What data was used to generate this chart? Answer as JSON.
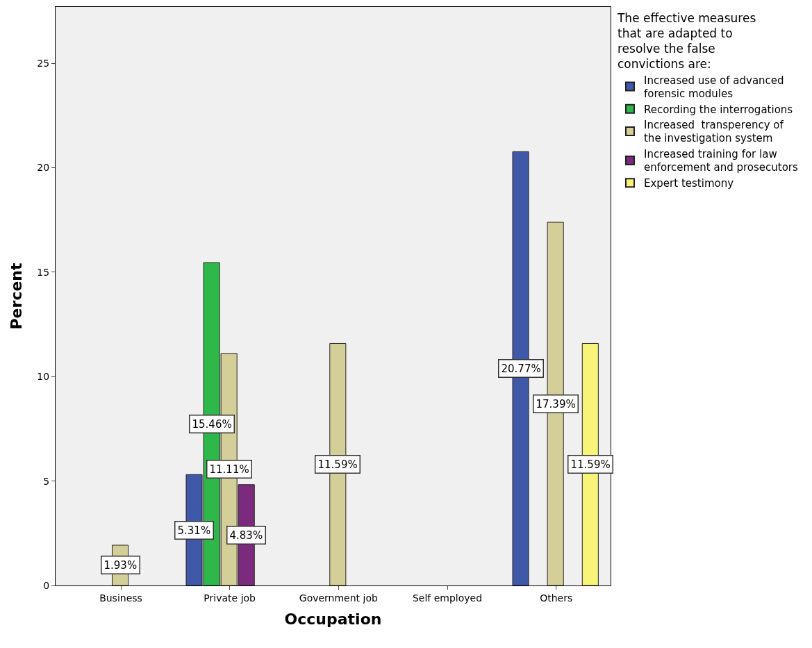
{
  "chart_data": {
    "type": "bar",
    "xlabel": "Occupation",
    "ylabel": "Percent",
    "legend_title": "The effective measures that are adapted to resolve the false convictions are:",
    "categories": [
      "Business",
      "Private job",
      "Government job",
      "Self employed",
      "Others"
    ],
    "series": [
      {
        "name": "Increased use of advanced forensic modules",
        "color": "#3f58a8",
        "values": [
          null,
          5.31,
          null,
          null,
          20.77
        ],
        "value_labels": [
          null,
          "5.31%",
          null,
          null,
          "20.77%"
        ]
      },
      {
        "name": "Recording the interrogations",
        "color": "#2eb84a",
        "values": [
          null,
          15.46,
          null,
          null,
          null
        ],
        "value_labels": [
          null,
          "15.46%",
          null,
          null,
          null
        ]
      },
      {
        "name": "Increased  transperency of the investigation system",
        "color": "#d4cf98",
        "values": [
          1.93,
          11.11,
          11.59,
          null,
          17.39
        ],
        "value_labels": [
          "1.93%",
          "11.11%",
          "11.59%",
          null,
          "17.39%"
        ]
      },
      {
        "name": "Increased training for law enforcement and prosecutors",
        "color": "#7b2a7e",
        "values": [
          null,
          4.83,
          null,
          null,
          null
        ],
        "value_labels": [
          null,
          "4.83%",
          null,
          null,
          null
        ]
      },
      {
        "name": "Expert testimony",
        "color": "#f8f47a",
        "values": [
          null,
          null,
          null,
          null,
          11.59
        ],
        "value_labels": [
          null,
          null,
          null,
          null,
          "11.59%"
        ]
      }
    ],
    "ylim": [
      0,
      27.7
    ],
    "yticks": [
      0,
      5,
      10,
      15,
      20,
      25
    ],
    "grid": false,
    "legend": "top right"
  }
}
